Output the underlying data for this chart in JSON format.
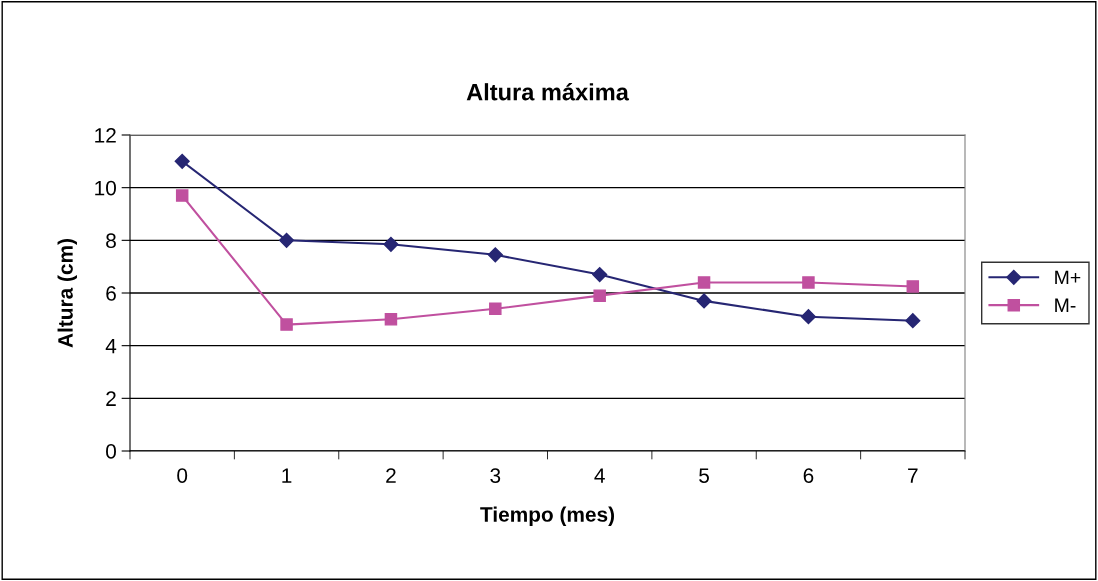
{
  "chart_data": {
    "type": "line",
    "title": "Altura máxima",
    "xlabel": "Tiempo (mes)",
    "ylabel": "Altura (cm)",
    "categories": [
      "0",
      "1",
      "2",
      "3",
      "4",
      "5",
      "6",
      "7"
    ],
    "series": [
      {
        "name": "M+",
        "color": "#262673",
        "marker": "diamond",
        "values": [
          11.0,
          8.0,
          7.85,
          7.45,
          6.7,
          5.7,
          5.1,
          4.95
        ]
      },
      {
        "name": "M-",
        "color": "#c0509f",
        "marker": "square",
        "values": [
          9.7,
          4.8,
          5.0,
          5.4,
          5.9,
          6.4,
          6.4,
          6.25
        ]
      }
    ],
    "ylim": [
      0,
      12
    ],
    "yticks": [
      0,
      2,
      4,
      6,
      8,
      10,
      12
    ],
    "grid": "y",
    "legend": "right",
    "line_style": "solid"
  }
}
